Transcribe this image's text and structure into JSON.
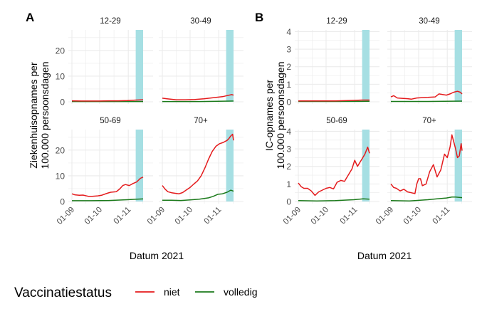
{
  "chart_data": [
    {
      "type": "line",
      "panel_label": "A",
      "ylabel": "Ziekenhuisopnames per\n100.000 persoonsdagen",
      "xlabel": "Datum 2021",
      "ylim": [
        0,
        28
      ],
      "yticks": [
        0,
        10,
        20
      ],
      "x_range_days": [
        0,
        77
      ],
      "xticks": [
        {
          "label": "01-09",
          "day": 0
        },
        {
          "label": "01-10",
          "day": 30
        },
        {
          "label": "01-11",
          "day": 61
        }
      ],
      "highlight_band_days": [
        69,
        77
      ],
      "facets": [
        {
          "title": "12-29",
          "series": [
            {
              "name": "niet",
              "days": [
                0,
                10,
                20,
                30,
                40,
                50,
                60,
                70,
                77
              ],
              "values": [
                0.4,
                0.3,
                0.3,
                0.3,
                0.4,
                0.4,
                0.5,
                0.7,
                0.8
              ]
            },
            {
              "name": "volledig",
              "days": [
                0,
                20,
                40,
                60,
                77
              ],
              "values": [
                0.1,
                0.1,
                0.1,
                0.1,
                0.1
              ]
            }
          ]
        },
        {
          "title": "30-49",
          "series": [
            {
              "name": "niet",
              "days": [
                0,
                5,
                15,
                25,
                35,
                45,
                55,
                65,
                70,
                75,
                77
              ],
              "values": [
                1.4,
                1.2,
                0.8,
                0.8,
                0.9,
                1.2,
                1.6,
                2.0,
                2.4,
                2.8,
                2.6
              ]
            },
            {
              "name": "volledig",
              "days": [
                0,
                20,
                40,
                60,
                77
              ],
              "values": [
                0.1,
                0.1,
                0.1,
                0.2,
                0.3
              ]
            }
          ]
        },
        {
          "title": "50-69",
          "series": [
            {
              "name": "niet",
              "days": [
                0,
                3,
                8,
                12,
                18,
                22,
                28,
                32,
                38,
                42,
                48,
                52,
                55,
                58,
                62,
                66,
                70,
                74,
                77
              ],
              "values": [
                3.0,
                2.6,
                2.4,
                2.5,
                2.0,
                2.0,
                2.2,
                2.4,
                3.2,
                3.6,
                3.8,
                5.0,
                6.2,
                6.6,
                6.2,
                7.0,
                7.6,
                9.0,
                9.5
              ]
            },
            {
              "name": "volledig",
              "days": [
                0,
                20,
                40,
                60,
                70,
                77
              ],
              "values": [
                0.3,
                0.3,
                0.4,
                0.7,
                0.9,
                1.0
              ]
            }
          ]
        },
        {
          "title": "70+",
          "series": [
            {
              "name": "niet",
              "days": [
                0,
                3,
                6,
                10,
                14,
                18,
                22,
                26,
                30,
                34,
                38,
                42,
                46,
                50,
                54,
                58,
                62,
                66,
                70,
                72,
                74,
                76,
                77
              ],
              "values": [
                6.2,
                4.8,
                3.8,
                3.4,
                3.2,
                3.0,
                3.5,
                4.5,
                5.5,
                6.8,
                8.0,
                10.0,
                13.0,
                16.5,
                19.5,
                21.5,
                22.5,
                23.0,
                23.8,
                24.5,
                25.5,
                26.2,
                23.8
              ]
            },
            {
              "name": "volledig",
              "days": [
                0,
                10,
                20,
                30,
                40,
                50,
                55,
                60,
                65,
                70,
                74,
                77
              ],
              "values": [
                0.5,
                0.5,
                0.4,
                0.6,
                0.9,
                1.4,
                2.0,
                2.8,
                3.0,
                3.6,
                4.4,
                4.0
              ]
            }
          ]
        }
      ]
    },
    {
      "type": "line",
      "panel_label": "B",
      "ylabel": "IC-opnames per\n100.000 persoonsdagen",
      "xlabel": "Datum 2021",
      "ylim": [
        0,
        4.1
      ],
      "yticks": [
        0,
        1,
        2,
        3,
        4
      ],
      "x_range_days": [
        0,
        77
      ],
      "xticks": [
        {
          "label": "01-09",
          "day": 0
        },
        {
          "label": "01-10",
          "day": 30
        },
        {
          "label": "01-11",
          "day": 61
        }
      ],
      "highlight_band_days": [
        69,
        77
      ],
      "facets": [
        {
          "title": "12-29",
          "series": [
            {
              "name": "niet",
              "days": [
                0,
                20,
                40,
                60,
                70,
                77
              ],
              "values": [
                0.05,
                0.05,
                0.05,
                0.08,
                0.1,
                0.1
              ]
            },
            {
              "name": "volledig",
              "days": [
                0,
                40,
                77
              ],
              "values": [
                0.02,
                0.02,
                0.03
              ]
            }
          ]
        },
        {
          "title": "30-49",
          "series": [
            {
              "name": "niet",
              "days": [
                0,
                3,
                7,
                12,
                18,
                22,
                28,
                34,
                40,
                48,
                52,
                56,
                60,
                64,
                68,
                72,
                75,
                77
              ],
              "values": [
                0.28,
                0.35,
                0.22,
                0.2,
                0.18,
                0.15,
                0.22,
                0.24,
                0.25,
                0.28,
                0.45,
                0.42,
                0.38,
                0.45,
                0.55,
                0.6,
                0.55,
                0.45
              ]
            },
            {
              "name": "volledig",
              "days": [
                0,
                40,
                77
              ],
              "values": [
                0.02,
                0.02,
                0.04
              ]
            }
          ]
        },
        {
          "title": "50-69",
          "series": [
            {
              "name": "niet",
              "days": [
                0,
                3,
                6,
                10,
                14,
                18,
                22,
                26,
                30,
                34,
                38,
                42,
                46,
                50,
                54,
                58,
                61,
                64,
                68,
                72,
                75,
                77
              ],
              "values": [
                1.05,
                0.85,
                0.75,
                0.75,
                0.6,
                0.35,
                0.55,
                0.65,
                0.75,
                0.8,
                0.72,
                1.1,
                1.2,
                1.15,
                1.5,
                1.85,
                2.35,
                2.0,
                2.35,
                2.7,
                3.1,
                2.75
              ]
            },
            {
              "name": "volledig",
              "days": [
                0,
                20,
                40,
                60,
                70,
                77
              ],
              "values": [
                0.05,
                0.03,
                0.05,
                0.1,
                0.15,
                0.13
              ]
            }
          ]
        },
        {
          "title": "70+",
          "series": [
            {
              "name": "niet",
              "days": [
                0,
                3,
                6,
                10,
                14,
                18,
                22,
                26,
                28,
                30,
                32,
                34,
                38,
                42,
                46,
                50,
                54,
                58,
                61,
                64,
                66,
                70,
                72,
                74,
                76,
                77
              ],
              "values": [
                1.0,
                0.8,
                0.75,
                0.6,
                0.7,
                0.55,
                0.5,
                0.45,
                1.0,
                1.3,
                1.3,
                0.9,
                1.0,
                1.7,
                2.1,
                1.4,
                1.8,
                2.7,
                2.5,
                3.1,
                3.8,
                3.0,
                2.5,
                2.6,
                3.3,
                2.9
              ]
            },
            {
              "name": "volledig",
              "days": [
                0,
                20,
                40,
                50,
                60,
                66,
                70,
                77
              ],
              "values": [
                0.05,
                0.03,
                0.1,
                0.15,
                0.2,
                0.25,
                0.25,
                0.22
              ]
            }
          ]
        }
      ]
    }
  ],
  "legend": {
    "title": "Vaccinatiestatus",
    "entries": [
      {
        "name": "niet",
        "color": "#e41a1c"
      },
      {
        "name": "volledig",
        "color": "#1b7a1b"
      }
    ]
  },
  "colors": {
    "band": "#a6dfe3",
    "grid": "#ebebeb",
    "tick_text": "#4d4d4d"
  }
}
